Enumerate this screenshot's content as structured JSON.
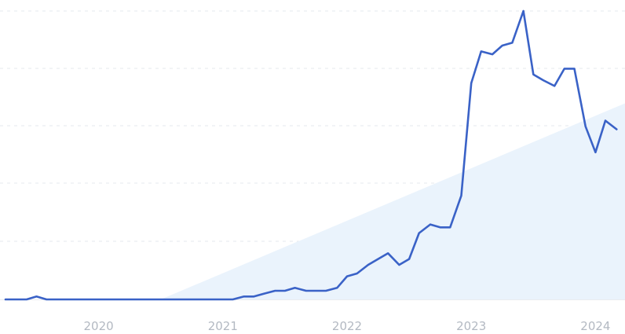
{
  "chart_data": {
    "type": "line",
    "title": "",
    "xlabel": "",
    "ylabel": "",
    "x_ticks": [
      {
        "label": "2020",
        "value": 2020.0
      },
      {
        "label": "2021",
        "value": 2021.0
      },
      {
        "label": "2022",
        "value": 2022.0
      },
      {
        "label": "2023",
        "value": 2023.0
      },
      {
        "label": "2024",
        "value": 2024.0
      }
    ],
    "xlim": [
      2019.25,
      2024.2
    ],
    "ylim": [
      0,
      100
    ],
    "grid": true,
    "line_color": "#3a62c7",
    "trend_fill_color": "#eaf3fc",
    "trend_start": {
      "x": 2020.5,
      "y": 0
    },
    "trend_end": {
      "x": 2024.2,
      "y": 68
    },
    "series": [
      {
        "points": [
          [
            2019.25,
            0
          ],
          [
            2019.33,
            0
          ],
          [
            2019.42,
            0
          ],
          [
            2019.5,
            1
          ],
          [
            2019.58,
            0
          ],
          [
            2019.67,
            0
          ],
          [
            2019.75,
            0
          ],
          [
            2019.83,
            0
          ],
          [
            2019.92,
            0
          ],
          [
            2020.0,
            0
          ],
          [
            2020.08,
            0
          ],
          [
            2020.17,
            0
          ],
          [
            2020.25,
            0
          ],
          [
            2020.33,
            0
          ],
          [
            2020.42,
            0
          ],
          [
            2020.5,
            0
          ],
          [
            2020.58,
            0
          ],
          [
            2020.67,
            0
          ],
          [
            2020.75,
            0
          ],
          [
            2020.83,
            0
          ],
          [
            2020.92,
            0
          ],
          [
            2021.0,
            0
          ],
          [
            2021.08,
            0
          ],
          [
            2021.17,
            1
          ],
          [
            2021.25,
            1
          ],
          [
            2021.33,
            2
          ],
          [
            2021.42,
            3
          ],
          [
            2021.5,
            3
          ],
          [
            2021.58,
            4
          ],
          [
            2021.67,
            3
          ],
          [
            2021.75,
            3
          ],
          [
            2021.83,
            3
          ],
          [
            2021.92,
            4
          ],
          [
            2022.0,
            8
          ],
          [
            2022.08,
            9
          ],
          [
            2022.17,
            12
          ],
          [
            2022.25,
            14
          ],
          [
            2022.33,
            16
          ],
          [
            2022.42,
            12
          ],
          [
            2022.5,
            14
          ],
          [
            2022.58,
            23
          ],
          [
            2022.67,
            26
          ],
          [
            2022.75,
            25
          ],
          [
            2022.83,
            25
          ],
          [
            2022.92,
            36
          ],
          [
            2023.0,
            75
          ],
          [
            2023.08,
            86
          ],
          [
            2023.17,
            85
          ],
          [
            2023.25,
            88
          ],
          [
            2023.33,
            89
          ],
          [
            2023.42,
            100
          ],
          [
            2023.5,
            78
          ],
          [
            2023.58,
            76
          ],
          [
            2023.67,
            74
          ],
          [
            2023.75,
            80
          ],
          [
            2023.83,
            80
          ],
          [
            2023.92,
            60
          ],
          [
            2024.0,
            51
          ],
          [
            2024.08,
            62
          ],
          [
            2024.17,
            59
          ]
        ]
      }
    ]
  }
}
